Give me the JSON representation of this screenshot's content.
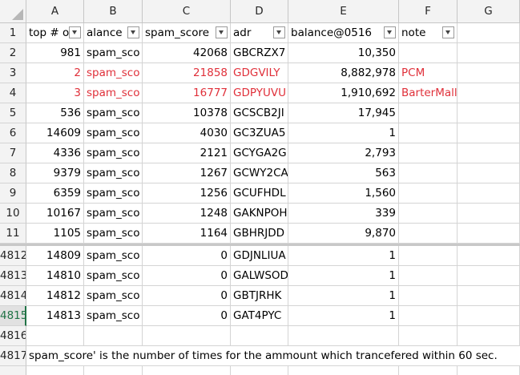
{
  "columns": [
    "A",
    "B",
    "C",
    "D",
    "E",
    "F",
    "G"
  ],
  "header_row": {
    "number": "1",
    "cells": [
      "top # of",
      "alance",
      "spam_score",
      "adr",
      "balance@0516",
      "note"
    ]
  },
  "top_rows": [
    {
      "n": "2",
      "a": "981",
      "b": "spam_sco",
      "c": "42068",
      "d": "GBCRZX7",
      "e": "10,350",
      "f": "",
      "red": false
    },
    {
      "n": "3",
      "a": "2",
      "b": "spam_sco",
      "c": "21858",
      "d": "GDGVILY",
      "e": "8,882,978",
      "f": "PCM",
      "red": true
    },
    {
      "n": "4",
      "a": "3",
      "b": "spam_sco",
      "c": "16777",
      "d": "GDPYUVU",
      "e": "1,910,692",
      "f": "BarterMall",
      "red": true
    },
    {
      "n": "5",
      "a": "536",
      "b": "spam_sco",
      "c": "10378",
      "d": "GCSCB2JI",
      "e": "17,945",
      "f": "",
      "red": false
    },
    {
      "n": "6",
      "a": "14609",
      "b": "spam_sco",
      "c": "4030",
      "d": "GC3ZUA5",
      "e": "1",
      "f": "",
      "red": false
    },
    {
      "n": "7",
      "a": "4336",
      "b": "spam_sco",
      "c": "2121",
      "d": "GCYGA2G",
      "e": "2,793",
      "f": "",
      "red": false
    },
    {
      "n": "8",
      "a": "9379",
      "b": "spam_sco",
      "c": "1267",
      "d": "GCWY2CA",
      "e": "563",
      "f": "",
      "red": false
    },
    {
      "n": "9",
      "a": "6359",
      "b": "spam_sco",
      "c": "1256",
      "d": "GCUFHDL",
      "e": "1,560",
      "f": "",
      "red": false
    },
    {
      "n": "10",
      "a": "10167",
      "b": "spam_sco",
      "c": "1248",
      "d": "GAKNPOH",
      "e": "339",
      "f": "",
      "red": false
    },
    {
      "n": "11",
      "a": "1105",
      "b": "spam_sco",
      "c": "1164",
      "d": "GBHRJDD",
      "e": "9,870",
      "f": "",
      "red": false
    }
  ],
  "bottom_rows": [
    {
      "n": "4812",
      "a": "14809",
      "b": "spam_sco",
      "c": "0",
      "d": "GDJNLIUA",
      "e": "1",
      "f": "",
      "red": false
    },
    {
      "n": "4813",
      "a": "14810",
      "b": "spam_sco",
      "c": "0",
      "d": "GALWSOD",
      "e": "1",
      "f": "",
      "red": false
    },
    {
      "n": "4814",
      "a": "14812",
      "b": "spam_sco",
      "c": "0",
      "d": "GBTJRHK",
      "e": "1",
      "f": "",
      "red": false
    },
    {
      "n": "4815",
      "a": "14813",
      "b": "spam_sco",
      "c": "0",
      "d": "GAT4PYC",
      "e": "1",
      "f": "",
      "red": false
    }
  ],
  "empty_row": {
    "n": "4816"
  },
  "note_row": {
    "n": "4817",
    "text": "spam_score' is the number of times for the ammount which trancefered within 60 sec."
  },
  "selected_row": "4815"
}
